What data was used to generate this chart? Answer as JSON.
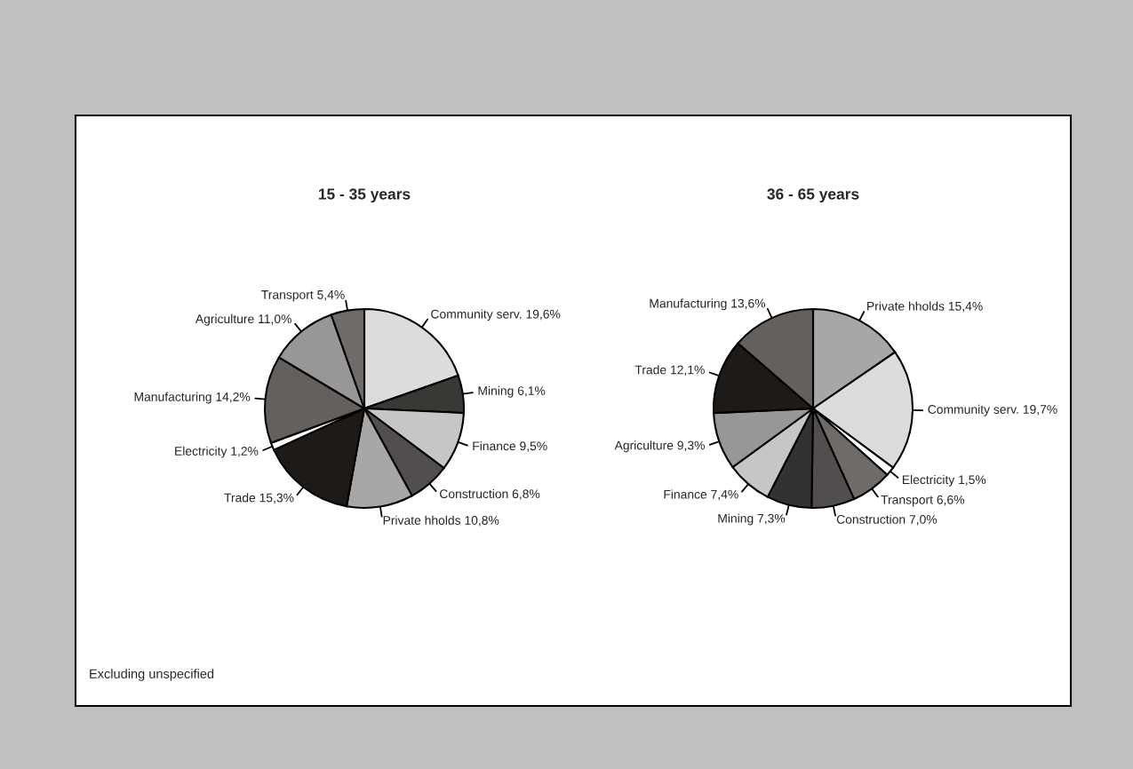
{
  "chart_data": [
    {
      "type": "pie",
      "title": "15 - 35 years",
      "categories": [
        "Community serv.",
        "Mining",
        "Finance",
        "Construction",
        "Private hholds",
        "Trade",
        "Electricity",
        "Manufacturing",
        "Agriculture",
        "Transport"
      ],
      "values": [
        19.6,
        6.1,
        9.5,
        6.8,
        10.8,
        15.3,
        1.2,
        14.2,
        11.0,
        5.4
      ],
      "value_labels": [
        "19,6%",
        "6,1%",
        "9,5%",
        "6,8%",
        "10,8%",
        "15,3%",
        "1,2%",
        "14,2%",
        "11,0%",
        "5,4%"
      ],
      "colors": [
        "#dcdcdc",
        "#3a3835",
        "#c6c6c6",
        "#524e4d",
        "#a9a7a5",
        "#1e1a18",
        "#ffffff",
        "#64605e",
        "#989697",
        "#6e6b69"
      ],
      "annotations": [
        "Excluding unspecified"
      ]
    },
    {
      "type": "pie",
      "title": "36 - 65 years",
      "categories": [
        "Private hholds",
        "Community serv.",
        "Electricity",
        "Transport",
        "Construction",
        "Mining",
        "Finance",
        "Agriculture",
        "Trade",
        "Manufacturing"
      ],
      "values": [
        15.4,
        19.7,
        1.5,
        6.6,
        7.0,
        7.3,
        7.4,
        9.3,
        12.1,
        13.6
      ],
      "value_labels": [
        "15,4%",
        "19,7%",
        "1,5%",
        "6,6%",
        "7,0%",
        "7,3%",
        "7,4%",
        "9,3%",
        "12,1%",
        "13,6%"
      ],
      "colors": [
        "#a9a7a5",
        "#dcdcdc",
        "#ffffff",
        "#6e6b69",
        "#524e4d",
        "#343230",
        "#c6c6c6",
        "#989697",
        "#1e1a18",
        "#64605e"
      ]
    }
  ]
}
